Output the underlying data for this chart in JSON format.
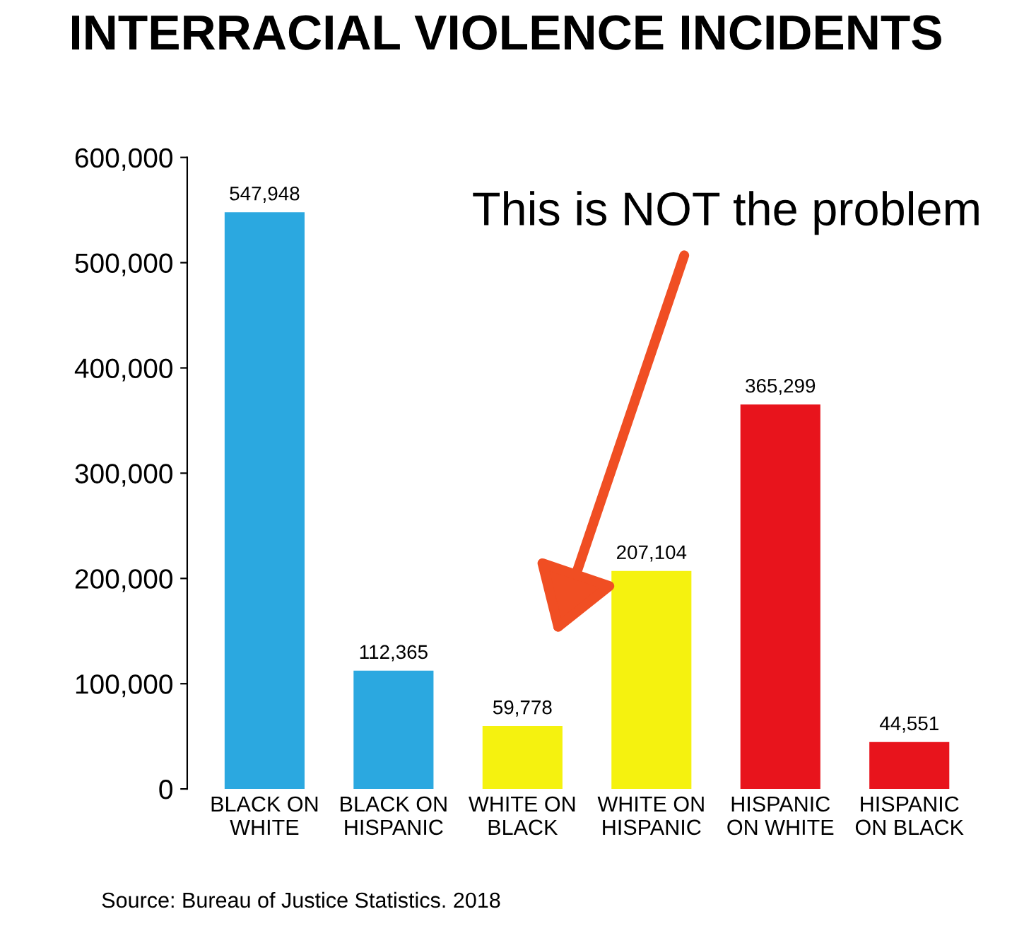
{
  "chart_data": {
    "type": "bar",
    "title": "INTERRACIAL VIOLENCE INCIDENTS",
    "categories": [
      "BLACK ON\nWHITE",
      "BLACK ON\nHISPANIC",
      "WHITE ON\nBLACK",
      "WHITE ON\nHISPANIC",
      "HISPANIC\nON WHITE",
      "HISPANIC\nON BLACK"
    ],
    "values": [
      547948,
      112365,
      59778,
      207104,
      365299,
      44551
    ],
    "value_labels": [
      "547,948",
      "112,365",
      "59,778",
      "207,104",
      "365,299",
      "44,551"
    ],
    "colors": [
      "#2ba8e0",
      "#2ba8e0",
      "#f5f20f",
      "#f5f20f",
      "#e8141c",
      "#e8141c"
    ],
    "ylim": [
      0,
      600000
    ],
    "yticks": [
      0,
      {
        "value": 100000,
        "label": "100,000"
      },
      {
        "value": 200000,
        "label": "200,000"
      },
      {
        "value": 300000,
        "label": "300,000"
      },
      {
        "value": 400000,
        "label": "400,000"
      },
      {
        "value": 500000,
        "label": "500,000"
      },
      {
        "value": 600000,
        "label": "600,000"
      }
    ],
    "annotations": [
      "This is NOT the problem",
      "Source: Bureau of Justice Statistics. 2018"
    ],
    "grid": false,
    "legend": false
  }
}
